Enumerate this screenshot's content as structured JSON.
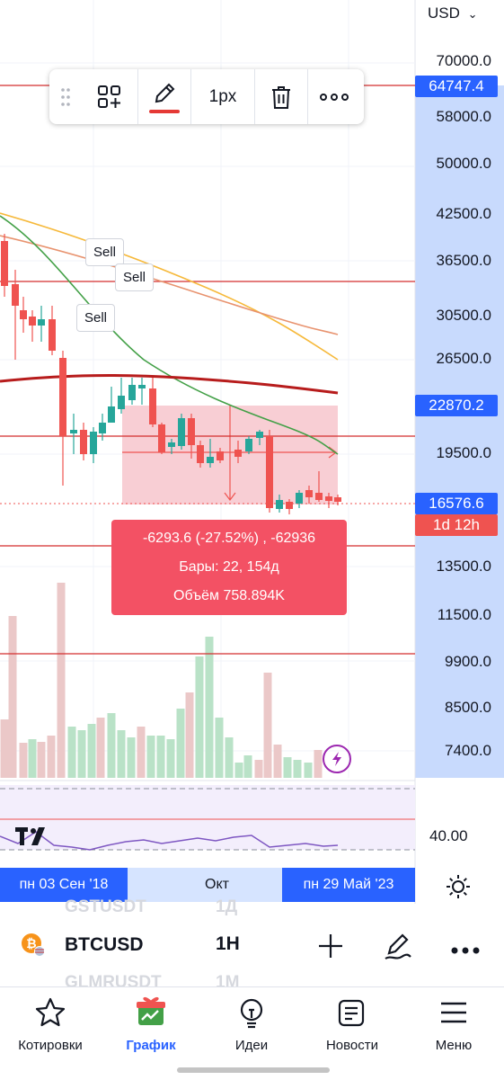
{
  "currency": "USD",
  "price_axis": [
    "70000.0",
    "58000.0",
    "50000.0",
    "42500.0",
    "36500.0",
    "30500.0",
    "26500.0",
    "19500.0",
    "13500.0",
    "11500.0",
    "9900.0",
    "8500.0",
    "7400.0"
  ],
  "price_tags": {
    "line_price": "64747.4",
    "range_top": "22870.2",
    "last_price": "16576.6",
    "countdown": "1d 12h"
  },
  "rsi_axis_label": "40.00",
  "toolbar": {
    "width_label": "1px"
  },
  "sell_labels": [
    "Sell",
    "Sell",
    "Sell"
  ],
  "measure": {
    "line1": "-6293.6 (-27.52%) , -62936",
    "line2": "Бары: 22, 154д",
    "line3": "Объём 758.894K"
  },
  "time_axis": {
    "start": "пн 03 Сен '18",
    "mid": "Окт",
    "end": "пн 29 Май '23"
  },
  "symbol": {
    "name": "BTCUSD",
    "interval": "1H",
    "ghost_top": "GSTUSDT",
    "ghost_top_interval": "1Д",
    "ghost_bottom": "GLMRUSDT",
    "ghost_bottom_interval": "1M"
  },
  "tabs": [
    {
      "label": "Котировки",
      "icon": "star-icon"
    },
    {
      "label": "График",
      "icon": "chart-gift-icon"
    },
    {
      "label": "Идеи",
      "icon": "lightbulb-icon"
    },
    {
      "label": "Новости",
      "icon": "news-icon"
    },
    {
      "label": "Меню",
      "icon": "menu-icon"
    }
  ],
  "colors": {
    "up": "#26a69a",
    "down": "#ef5350",
    "accent": "#2962ff",
    "tooltip": "#f35164"
  }
}
